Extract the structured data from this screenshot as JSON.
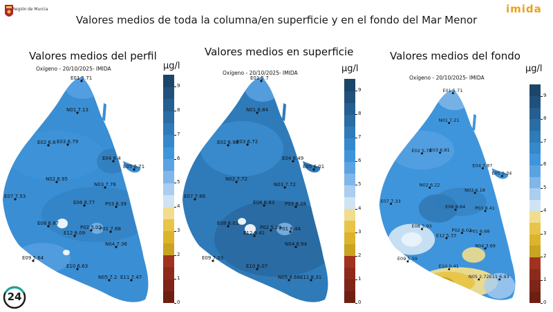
{
  "header": {
    "title": "Valores medios de toda la columna/en superficie y en el fondo del Mar Menor",
    "region_label": "Región",
    "region_name": "de Murcia",
    "partner_logo_text": "imida",
    "badge_text": "24"
  },
  "panels": [
    {
      "title": "Valores medios del perfil",
      "subtitle": "Oxígeno - 20/10/2025- IMIDA",
      "unit": "µg/l",
      "stations": [
        {
          "id": "E01",
          "value": "5.71"
        },
        {
          "id": "N01",
          "value": "7.13"
        },
        {
          "id": "E02",
          "value": "6.6"
        },
        {
          "id": "E03",
          "value": "6.79"
        },
        {
          "id": "E04",
          "value": "8.4"
        },
        {
          "id": "E05",
          "value": "6.71"
        },
        {
          "id": "N02",
          "value": "6.95"
        },
        {
          "id": "N03",
          "value": "7.76"
        },
        {
          "id": "E07",
          "value": "7.53"
        },
        {
          "id": "E06",
          "value": "8.77"
        },
        {
          "id": "P03",
          "value": "8.39"
        },
        {
          "id": "E08",
          "value": "6.87"
        },
        {
          "id": "P02",
          "value": "5.02"
        },
        {
          "id": "P01",
          "value": "7.68"
        },
        {
          "id": "E12",
          "value": "8.09"
        },
        {
          "id": "N04",
          "value": "7.36"
        },
        {
          "id": "E09",
          "value": "5.64"
        },
        {
          "id": "E10",
          "value": "6.63"
        },
        {
          "id": "N05",
          "value": "7.2"
        },
        {
          "id": "E11",
          "value": "7.47"
        }
      ]
    },
    {
      "title": "Valores medios en superficie",
      "subtitle": "Oxígeno - 20/10/2025- IMIDA",
      "unit": "µg/l",
      "stations": [
        {
          "id": "E01",
          "value": "5.7"
        },
        {
          "id": "N01",
          "value": "6.84"
        },
        {
          "id": "E02",
          "value": "6.98"
        },
        {
          "id": "E03",
          "value": "6.72"
        },
        {
          "id": "E04",
          "value": "8.49"
        },
        {
          "id": "E05",
          "value": "6.01"
        },
        {
          "id": "N02",
          "value": "7.72"
        },
        {
          "id": "N03",
          "value": "7.72"
        },
        {
          "id": "E07",
          "value": "7.66"
        },
        {
          "id": "E06",
          "value": "8.83"
        },
        {
          "id": "P03",
          "value": "8.28"
        },
        {
          "id": "E08",
          "value": "8.01"
        },
        {
          "id": "P02",
          "value": "5.29"
        },
        {
          "id": "P01",
          "value": "8.44"
        },
        {
          "id": "E12",
          "value": "9.41"
        },
        {
          "id": "N04",
          "value": "8.94"
        },
        {
          "id": "E09",
          "value": "7.03"
        },
        {
          "id": "E10",
          "value": "8.07"
        },
        {
          "id": "N05",
          "value": "8.68"
        },
        {
          "id": "E11",
          "value": "8.31"
        }
      ]
    },
    {
      "title": "Valores medios del fondo",
      "subtitle": "Oxígeno - 20/10/2025- IMIDA",
      "unit": "µg/l",
      "stations": [
        {
          "id": "E01",
          "value": "5.71"
        },
        {
          "id": "N01",
          "value": "7.21"
        },
        {
          "id": "E02",
          "value": "5.78"
        },
        {
          "id": "E03",
          "value": "6.81"
        },
        {
          "id": "E04",
          "value": "7.87"
        },
        {
          "id": "E05",
          "value": "6.34"
        },
        {
          "id": "N02",
          "value": "6.22"
        },
        {
          "id": "N03",
          "value": "6.18"
        },
        {
          "id": "E07",
          "value": "7.33"
        },
        {
          "id": "E06",
          "value": "8.64"
        },
        {
          "id": "P03",
          "value": "8.41"
        },
        {
          "id": "E08",
          "value": "3.93"
        },
        {
          "id": "P02",
          "value": "6.02"
        },
        {
          "id": "P01",
          "value": "6.68"
        },
        {
          "id": "E12",
          "value": "5.33"
        },
        {
          "id": "N04",
          "value": "3.69"
        },
        {
          "id": "E09",
          "value": "5.59"
        },
        {
          "id": "E10",
          "value": "0.41"
        },
        {
          "id": "N05",
          "value": "2.72"
        },
        {
          "id": "E11",
          "value": "6.93"
        }
      ]
    }
  ],
  "colorbar": {
    "ticks": [
      "9",
      "8",
      "7",
      "6",
      "5",
      "4",
      "3",
      "2",
      "1",
      "0"
    ],
    "range": [
      0,
      9.5
    ],
    "bands": [
      {
        "from": 0,
        "to": 0.5,
        "color": "#6e1f14"
      },
      {
        "from": 0.5,
        "to": 1,
        "color": "#7e2418"
      },
      {
        "from": 1,
        "to": 1.5,
        "color": "#8e2a1c"
      },
      {
        "from": 1.5,
        "to": 2,
        "color": "#a0321f"
      },
      {
        "from": 2,
        "to": 2.5,
        "color": "#c9a321"
      },
      {
        "from": 2.5,
        "to": 3,
        "color": "#dcb32b"
      },
      {
        "from": 3,
        "to": 3.5,
        "color": "#e8c548"
      },
      {
        "from": 3.5,
        "to": 4,
        "color": "#f1dd8d"
      },
      {
        "from": 4,
        "to": 4.5,
        "color": "#cfe3f3"
      },
      {
        "from": 4.5,
        "to": 5,
        "color": "#aacdf0"
      },
      {
        "from": 5,
        "to": 5.5,
        "color": "#80b6e8"
      },
      {
        "from": 5.5,
        "to": 6,
        "color": "#5aa3e2"
      },
      {
        "from": 6,
        "to": 6.5,
        "color": "#3f95db"
      },
      {
        "from": 6.5,
        "to": 7,
        "color": "#3588cc"
      },
      {
        "from": 7,
        "to": 7.5,
        "color": "#2f7ab8"
      },
      {
        "from": 7.5,
        "to": 8,
        "color": "#2a6ca4"
      },
      {
        "from": 8,
        "to": 8.5,
        "color": "#255e90"
      },
      {
        "from": 8.5,
        "to": 9,
        "color": "#20517c"
      },
      {
        "from": 9,
        "to": 9.5,
        "color": "#1c456a"
      }
    ]
  }
}
